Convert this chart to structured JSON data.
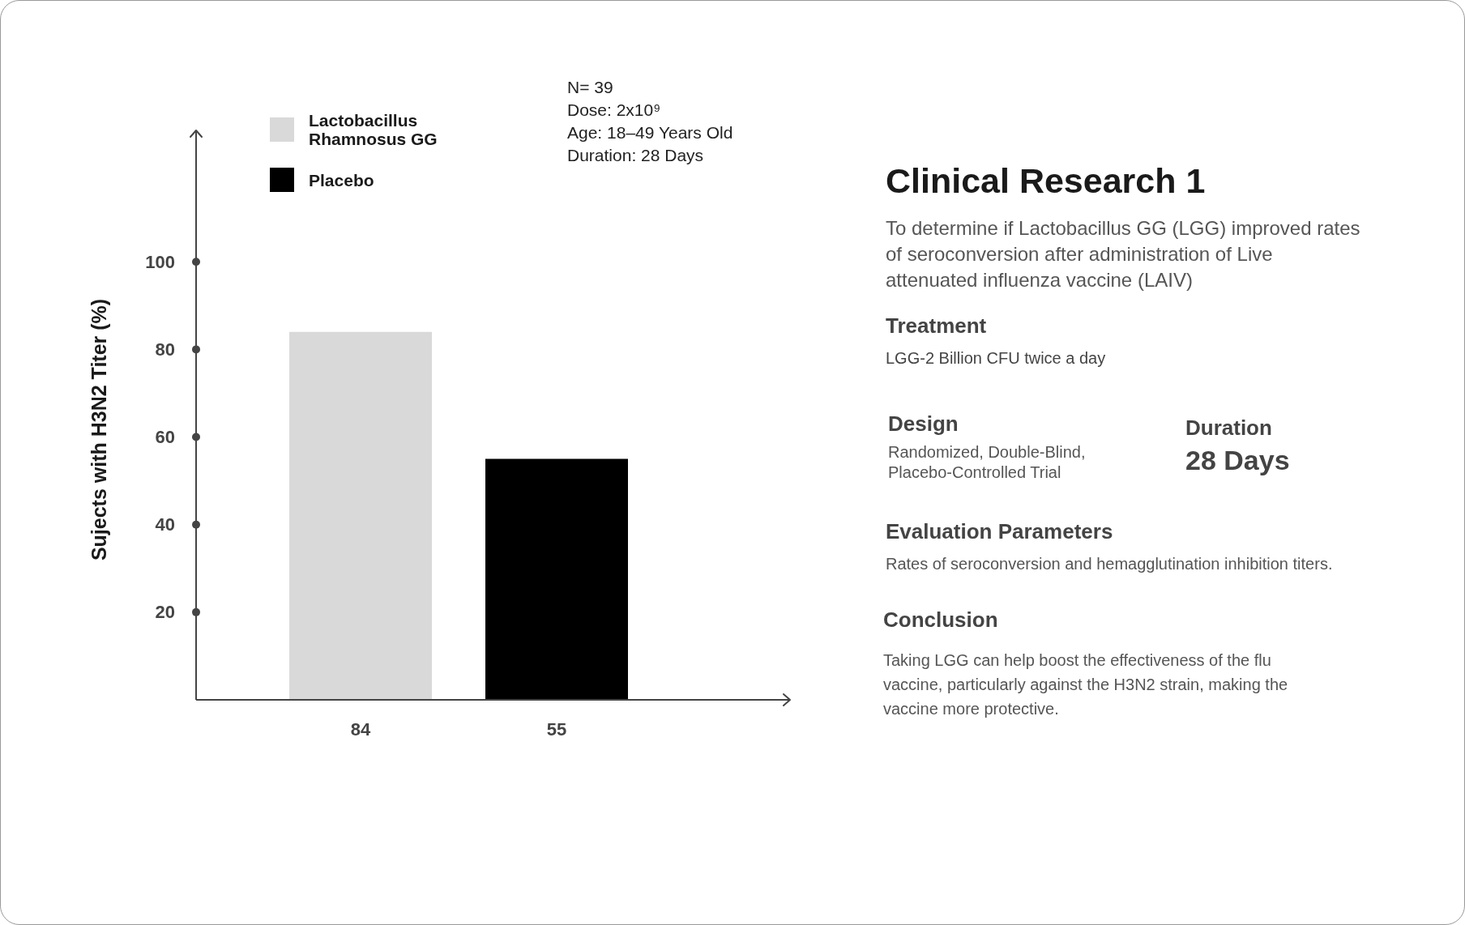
{
  "chart_data": [
    {
      "type": "bar",
      "categories": [
        null
      ],
      "series": [
        {
          "name": "Lactobacillus Rhamnosus GG",
          "color": "#d9d9d9",
          "values": [
            84
          ]
        },
        {
          "name": "Placebo",
          "color": "#000000",
          "values": [
            55
          ]
        }
      ],
      "ylabel": "Sujects with H3N2 Titer (%)",
      "ylim": [
        0,
        130
      ],
      "yticks": [
        20,
        40,
        60,
        80,
        100
      ],
      "legend": "top left",
      "data_labels": true,
      "annotations": [
        "N= 39",
        "Dose: 2x10⁹",
        "Age: 18–49 Years Old",
        "Duration: 28 Days"
      ]
    },
    {
      "type": "other",
      "title": "Clinical Research 1",
      "subtitle": "To determine if Lactobacillus GG (LGG) improved rates of seroconversion after administration of Live attenuated influenza vaccine (LAIV)",
      "annotations": [
        "Treatment",
        "LGG-2 Billion CFU twice a day",
        "Design",
        "Randomized, Double-Blind, Placebo-Controlled Trial",
        "Duration",
        "28 Days",
        "Evaluation Parameters",
        "Rates of seroconversion and hemagglutination inhibition titers.",
        "Conclusion",
        "Taking LGG can help boost the effectiveness of the flu vaccine, particularly against the H3N2 strain, making the vaccine more protective."
      ]
    }
  ]
}
